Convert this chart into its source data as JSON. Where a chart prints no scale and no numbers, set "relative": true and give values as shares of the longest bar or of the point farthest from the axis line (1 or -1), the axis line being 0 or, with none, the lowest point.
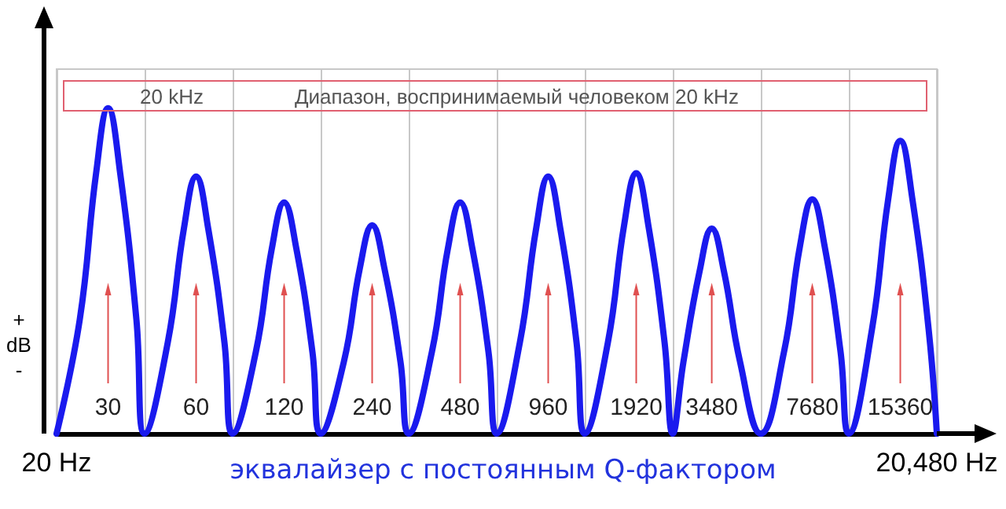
{
  "chart_data": {
    "type": "line",
    "title": "эквалайзер с постоянным Q-фактором",
    "ylabel": "+ dB -",
    "annotations": [
      "20 kHz",
      "Диапазон, воспринимаемый человеком  20 kHz",
      "30",
      "60",
      "120",
      "240",
      "480",
      "960",
      "1920",
      "3480",
      "7680",
      "15360"
    ],
    "log": "x",
    "relative": true,
    "grid": "x",
    "marker": "none",
    "line_style": "solid",
    "xlim": [
      20,
      20480
    ],
    "xticks": [
      {
        "value": 20,
        "label": "20 Hz"
      },
      {
        "value": 40,
        "label": null
      },
      {
        "value": 80,
        "label": null
      },
      {
        "value": 160,
        "label": null
      },
      {
        "value": 320,
        "label": null
      },
      {
        "value": 640,
        "label": null
      },
      {
        "value": 1280,
        "label": null
      },
      {
        "value": 2560,
        "label": null
      },
      {
        "value": 5120,
        "label": null
      },
      {
        "value": 10240,
        "label": null
      },
      {
        "value": 20480,
        "label": "20,480 Hz"
      }
    ],
    "series": [
      {
        "color": "#1a1aee",
        "x": [
          20,
          24,
          27.3,
          30,
          33,
          37.5,
          40,
          48,
          54.5,
          60,
          66,
          75,
          80,
          96,
          109,
          120,
          132,
          150,
          160,
          192,
          218,
          240,
          264,
          300,
          320,
          384,
          436,
          480,
          528,
          600,
          640,
          768,
          873,
          960,
          1056,
          1200,
          1280,
          1536,
          1745,
          1920,
          2112,
          2400,
          2560,
          2784,
          3164,
          3480,
          3828,
          4350,
          5120,
          6144,
          6982,
          7680,
          8448,
          9600,
          10240,
          12288,
          13964,
          15360,
          16896,
          19200,
          20480
        ],
        "values": [
          0,
          0.35,
          0.8,
          1,
          0.8,
          0.35,
          0,
          0.28,
          0.63,
          0.79,
          0.63,
          0.28,
          0,
          0.25,
          0.57,
          0.71,
          0.57,
          0.25,
          0,
          0.22,
          0.51,
          0.64,
          0.51,
          0.22,
          0,
          0.25,
          0.57,
          0.71,
          0.57,
          0.25,
          0,
          0.28,
          0.63,
          0.79,
          0.63,
          0.28,
          0,
          0.28,
          0.64,
          0.8,
          0.64,
          0.28,
          0,
          0.22,
          0.5,
          0.63,
          0.5,
          0.22,
          0,
          0.25,
          0.58,
          0.72,
          0.58,
          0.25,
          0,
          0.32,
          0.72,
          0.9,
          0.72,
          0.32,
          0
        ]
      }
    ]
  }
}
